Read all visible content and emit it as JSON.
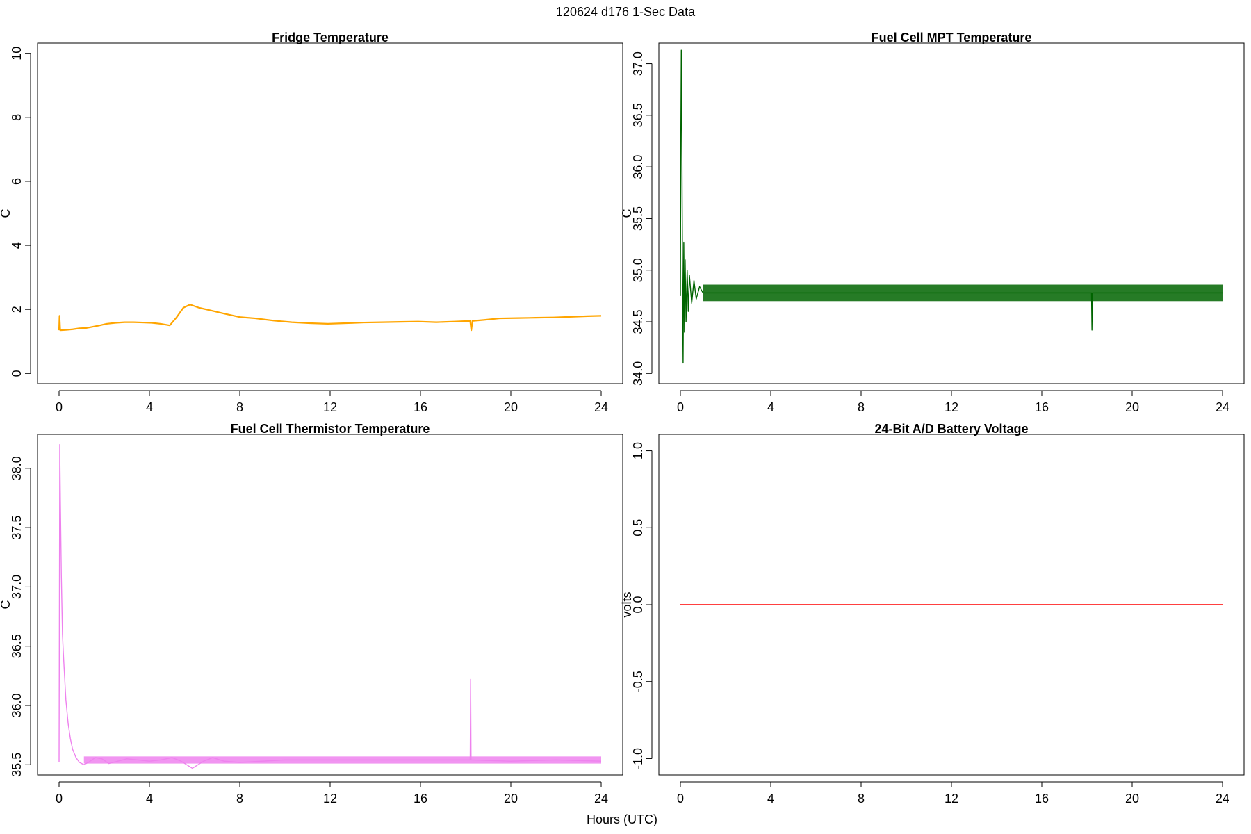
{
  "figure_title": "120624   d176   1-Sec Data",
  "shared_xlabel": "Hours (UTC)",
  "chart_data": [
    {
      "type": "line",
      "title": "Fridge Temperature",
      "ylabel": "C",
      "xlabel": "",
      "color": "#FFA500",
      "xlim": [
        0,
        24
      ],
      "ylim": [
        0,
        10
      ],
      "xticks": [
        0,
        4,
        8,
        12,
        16,
        20,
        24
      ],
      "yticks": [
        0,
        2,
        4,
        6,
        8,
        10
      ],
      "yticks_labels": [
        "0",
        "2",
        "4",
        "6",
        "8",
        "10"
      ],
      "series": [
        {
          "name": "Fridge Temperature",
          "x": [
            0,
            0.02,
            0.05,
            0.3,
            0.6,
            0.9,
            1.2,
            1.5,
            1.8,
            2.1,
            2.5,
            2.9,
            3.3,
            3.7,
            4.1,
            4.5,
            4.9,
            5.2,
            5.5,
            5.8,
            6.2,
            6.7,
            7.3,
            8.0,
            8.7,
            9.5,
            10.3,
            11.1,
            11.9,
            12.7,
            13.5,
            14.3,
            15.1,
            15.9,
            16.7,
            17.5,
            18.2,
            18.25,
            18.3,
            18.8,
            19.5,
            20.3,
            21.1,
            21.9,
            22.7,
            23.4,
            24
          ],
          "y": [
            1.35,
            1.8,
            1.35,
            1.36,
            1.38,
            1.41,
            1.42,
            1.46,
            1.5,
            1.55,
            1.58,
            1.6,
            1.6,
            1.59,
            1.58,
            1.55,
            1.5,
            1.75,
            2.05,
            2.15,
            2.05,
            1.97,
            1.87,
            1.76,
            1.72,
            1.65,
            1.6,
            1.57,
            1.55,
            1.57,
            1.59,
            1.6,
            1.61,
            1.62,
            1.6,
            1.62,
            1.64,
            1.35,
            1.64,
            1.67,
            1.72,
            1.73,
            1.74,
            1.75,
            1.77,
            1.79,
            1.8
          ]
        }
      ]
    },
    {
      "type": "line",
      "title": "Fuel Cell MPT Temperature",
      "ylabel": "C",
      "xlabel": "",
      "color": "#006400",
      "xlim": [
        0,
        24
      ],
      "ylim": [
        34.0,
        37.1
      ],
      "xticks": [
        0,
        4,
        8,
        12,
        16,
        20,
        24
      ],
      "yticks": [
        34.0,
        34.5,
        35.0,
        35.5,
        36.0,
        36.5,
        37.0
      ],
      "yticks_labels": [
        "34.0",
        "34.5",
        "35.0",
        "35.5",
        "36.0",
        "36.5",
        "37.0"
      ],
      "baseline": 34.78,
      "noise_band": [
        34.7,
        34.86
      ],
      "series": [
        {
          "name": "Fuel Cell MPT Temperature",
          "x": [
            0,
            0.02,
            0.04,
            0.06,
            0.08,
            0.1,
            0.12,
            0.15,
            0.18,
            0.21,
            0.25,
            0.3,
            0.35,
            0.4,
            0.5,
            0.6,
            0.7,
            0.85,
            1.0,
            18.2,
            18.22,
            18.24,
            24
          ],
          "y": [
            34.75,
            36.3,
            37.13,
            36.6,
            35.6,
            34.7,
            34.1,
            35.27,
            34.4,
            35.1,
            34.5,
            35.0,
            34.6,
            34.95,
            34.68,
            34.9,
            34.72,
            34.84,
            34.78,
            34.78,
            34.42,
            34.78,
            34.78
          ]
        }
      ]
    },
    {
      "type": "line",
      "title": "Fuel Cell Thermistor Temperature",
      "ylabel": "C",
      "xlabel": "",
      "color": "#EE82EE",
      "xlim": [
        0,
        24
      ],
      "ylim": [
        35.5,
        38.2
      ],
      "xticks": [
        0,
        4,
        8,
        12,
        16,
        20,
        24
      ],
      "yticks": [
        35.5,
        36.0,
        36.5,
        37.0,
        37.5,
        38.0
      ],
      "yticks_labels": [
        "35.5",
        "36.0",
        "36.5",
        "37.0",
        "37.5",
        "38.0"
      ],
      "baseline": 35.54,
      "noise_band": [
        35.51,
        35.57
      ],
      "series": [
        {
          "name": "Fuel Cell Thermistor Temperature",
          "x": [
            0,
            0.03,
            0.06,
            0.1,
            0.15,
            0.2,
            0.3,
            0.4,
            0.5,
            0.6,
            0.75,
            0.9,
            1.1,
            1.3,
            1.6,
            1.9,
            2.2,
            2.6,
            3.0,
            3.5,
            4.0,
            4.5,
            5.0,
            5.4,
            5.9,
            6.4,
            6.8,
            7.3,
            8.0,
            9.0,
            10.0,
            12.0,
            14.0,
            16.0,
            18.2,
            18.22,
            18.24,
            20.0,
            22.0,
            24.0
          ],
          "y": [
            35.52,
            38.2,
            37.7,
            37.1,
            36.6,
            36.4,
            36.05,
            35.85,
            35.72,
            35.63,
            35.56,
            35.52,
            35.5,
            35.52,
            35.56,
            35.55,
            35.51,
            35.53,
            35.55,
            35.54,
            35.53,
            35.54,
            35.56,
            35.53,
            35.47,
            35.53,
            35.56,
            35.53,
            35.52,
            35.53,
            35.54,
            35.54,
            35.54,
            35.54,
            35.54,
            36.22,
            35.54,
            35.53,
            35.54,
            35.53
          ]
        }
      ]
    },
    {
      "type": "line",
      "title": "24-Bit A/D Battery Voltage",
      "ylabel": "volts",
      "xlabel": "",
      "color": "#FF0000",
      "xlim": [
        0,
        24
      ],
      "ylim": [
        -1.04,
        1.04
      ],
      "xticks": [
        0,
        4,
        8,
        12,
        16,
        20,
        24
      ],
      "yticks": [
        -1.0,
        -0.5,
        0.0,
        0.5,
        1.0
      ],
      "yticks_labels": [
        "-1.0",
        "-0.5",
        "0.0",
        "0.5",
        "1.0"
      ],
      "series": [
        {
          "name": "24-Bit A/D Battery Voltage",
          "x": [
            0,
            24
          ],
          "y": [
            0,
            0
          ]
        }
      ]
    }
  ]
}
